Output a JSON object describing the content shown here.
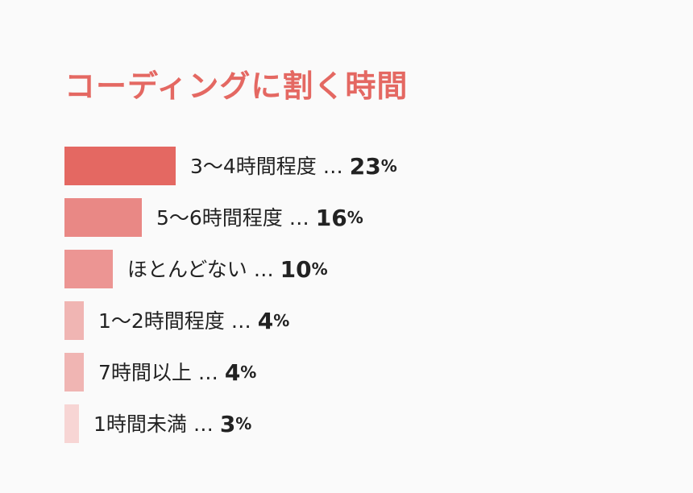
{
  "chart_data": {
    "type": "bar",
    "orientation": "horizontal",
    "title": "コーディングに割く時間",
    "categories": [
      "3〜4時間程度",
      "5〜6時間程度",
      "ほとんどない",
      "1〜2時間程度",
      "7時間以上",
      "1時間未満"
    ],
    "values": [
      23,
      16,
      10,
      4,
      4,
      3
    ],
    "unit": "%",
    "separator": "…",
    "bar_colors": [
      "#e46862",
      "#e98885",
      "#ec9593",
      "#f0b5b3",
      "#f0b5b3",
      "#f7d5d4"
    ],
    "title_color": "#e46862"
  }
}
